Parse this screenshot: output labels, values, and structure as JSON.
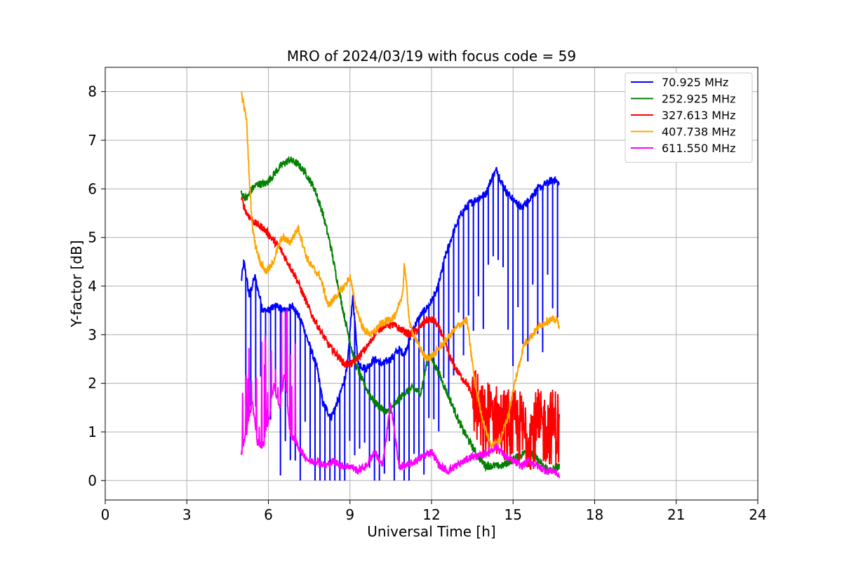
{
  "chart_data": {
    "type": "line",
    "title": "MRO of 2024/03/19 with focus code = 59",
    "xlabel": "Universal Time [h]",
    "ylabel": "Y-factor [dB]",
    "xlim": [
      0,
      24
    ],
    "ylim": [
      -0.4,
      8.5
    ],
    "x_ticks": [
      0,
      3,
      6,
      9,
      12,
      15,
      18,
      21,
      24
    ],
    "y_ticks": [
      0,
      1,
      2,
      3,
      4,
      5,
      6,
      7,
      8
    ],
    "x_tick_labels": [
      "0",
      "3",
      "6",
      "9",
      "12",
      "15",
      "18",
      "21",
      "24"
    ],
    "y_tick_labels": [
      "0",
      "1",
      "2",
      "3",
      "4",
      "5",
      "6",
      "7",
      "8"
    ],
    "grid": true,
    "legend_position": "top-right",
    "series": [
      {
        "name": " 70.925 MHz",
        "color": "#0000ff",
        "spikes": true,
        "x": [
          5.0,
          5.1,
          5.3,
          5.5,
          5.8,
          6.0,
          6.3,
          6.6,
          6.9,
          7.2,
          7.5,
          7.8,
          8.0,
          8.3,
          8.6,
          8.9,
          9.1,
          9.3,
          9.6,
          9.9,
          10.2,
          10.5,
          10.8,
          11.0,
          11.3,
          11.6,
          11.9,
          12.2,
          12.5,
          12.8,
          13.1,
          13.4,
          13.7,
          14.0,
          14.2,
          14.4,
          14.6,
          14.8,
          15.0,
          15.3,
          15.6,
          15.9,
          16.2,
          16.5,
          16.7
        ],
        "y": [
          4.1,
          4.5,
          3.8,
          4.2,
          3.5,
          3.5,
          3.6,
          3.5,
          3.6,
          3.3,
          2.8,
          2.3,
          1.6,
          1.3,
          1.7,
          2.3,
          3.8,
          2.4,
          2.3,
          2.5,
          2.4,
          2.5,
          2.7,
          2.6,
          3.1,
          3.4,
          3.6,
          3.9,
          4.6,
          5.1,
          5.5,
          5.7,
          5.8,
          5.9,
          6.2,
          6.4,
          6.1,
          5.9,
          5.8,
          5.6,
          5.8,
          6.0,
          6.1,
          6.2,
          6.1
        ]
      },
      {
        "name": " 252.925 MHz",
        "color": "#008000",
        "x": [
          5.0,
          5.2,
          5.4,
          5.6,
          5.9,
          6.2,
          6.5,
          6.8,
          7.1,
          7.4,
          7.7,
          8.0,
          8.3,
          8.6,
          8.9,
          9.2,
          9.5,
          9.8,
          10.1,
          10.4,
          10.7,
          11.0,
          11.3,
          11.6,
          11.9,
          12.2,
          12.5,
          12.8,
          13.1,
          13.4,
          13.7,
          14.0,
          14.3,
          14.6,
          14.9,
          15.2,
          15.5,
          15.8,
          16.1,
          16.4,
          16.7
        ],
        "y": [
          5.9,
          5.8,
          6.0,
          6.1,
          6.1,
          6.3,
          6.5,
          6.6,
          6.5,
          6.3,
          6.0,
          5.5,
          4.8,
          3.9,
          3.1,
          2.4,
          2.0,
          1.7,
          1.5,
          1.4,
          1.6,
          1.8,
          1.9,
          1.8,
          2.6,
          2.3,
          1.9,
          1.5,
          1.1,
          0.8,
          0.5,
          0.3,
          0.3,
          0.3,
          0.4,
          0.5,
          0.6,
          0.5,
          0.3,
          0.2,
          0.3
        ]
      },
      {
        "name": " 327.613 MHz",
        "color": "#ff0000",
        "noisy_tail": true,
        "x": [
          5.0,
          5.2,
          5.5,
          5.8,
          6.1,
          6.4,
          6.7,
          7.0,
          7.3,
          7.6,
          7.9,
          8.2,
          8.5,
          8.8,
          9.1,
          9.4,
          9.7,
          10.0,
          10.3,
          10.6,
          10.9,
          11.2,
          11.5,
          11.8,
          12.1,
          12.4,
          12.7,
          13.0,
          13.3,
          13.6,
          13.9,
          14.2,
          14.5,
          14.8,
          15.1,
          15.4,
          15.7,
          16.0,
          16.3,
          16.6,
          16.7
        ],
        "y": [
          5.8,
          5.5,
          5.3,
          5.2,
          5.0,
          4.8,
          4.5,
          4.2,
          3.8,
          3.4,
          3.1,
          2.8,
          2.6,
          2.4,
          2.4,
          2.6,
          2.8,
          3.1,
          3.2,
          3.2,
          3.1,
          3.0,
          3.1,
          3.3,
          3.3,
          3.0,
          2.5,
          2.2,
          2.0,
          1.6,
          1.1,
          1.3,
          1.2,
          1.1,
          1.1,
          1.0,
          1.0,
          1.1,
          1.1,
          1.1,
          1.0
        ]
      },
      {
        "name": " 407.738 MHz",
        "color": "#ffa500",
        "x": [
          5.0,
          5.1,
          5.2,
          5.3,
          5.4,
          5.5,
          5.7,
          5.9,
          6.1,
          6.3,
          6.5,
          6.8,
          7.1,
          7.4,
          7.6,
          7.9,
          8.2,
          8.5,
          8.8,
          9.0,
          9.2,
          9.5,
          9.8,
          10.1,
          10.4,
          10.7,
          10.95,
          11.0,
          11.2,
          11.5,
          11.8,
          12.1,
          12.4,
          12.7,
          13.0,
          13.3,
          13.6,
          13.9,
          14.2,
          14.5,
          14.8,
          15.1,
          15.4,
          15.7,
          16.0,
          16.3,
          16.6,
          16.7
        ],
        "y": [
          8.0,
          7.7,
          7.4,
          6.2,
          5.3,
          4.9,
          4.5,
          4.3,
          4.4,
          4.7,
          5.0,
          4.9,
          5.2,
          4.6,
          4.4,
          4.2,
          3.6,
          3.8,
          4.0,
          4.2,
          3.6,
          3.1,
          3.0,
          3.2,
          3.3,
          3.4,
          3.9,
          4.5,
          3.2,
          2.8,
          2.5,
          2.6,
          2.8,
          3.0,
          3.2,
          3.3,
          2.0,
          1.2,
          0.7,
          0.8,
          1.3,
          2.1,
          2.8,
          3.0,
          3.2,
          3.3,
          3.3,
          3.2
        ]
      },
      {
        "name": " 611.550 MHz",
        "color": "#ff00ff",
        "spiky": true,
        "x": [
          5.0,
          5.2,
          5.4,
          5.6,
          5.8,
          6.0,
          6.2,
          6.4,
          6.6,
          6.8,
          7.0,
          7.2,
          7.5,
          7.8,
          8.1,
          8.4,
          8.7,
          9.0,
          9.3,
          9.6,
          9.9,
          10.2,
          10.5,
          10.8,
          11.1,
          11.4,
          11.7,
          12.0,
          12.3,
          12.6,
          12.9,
          13.2,
          13.5,
          13.8,
          14.1,
          14.4,
          14.7,
          15.0,
          15.3,
          15.6,
          15.9,
          16.2,
          16.5,
          16.7
        ],
        "y": [
          0.6,
          1.0,
          1.6,
          0.8,
          0.7,
          1.2,
          2.0,
          1.5,
          2.2,
          1.0,
          0.8,
          0.6,
          0.4,
          0.4,
          0.3,
          0.4,
          0.3,
          0.3,
          0.2,
          0.3,
          0.6,
          0.3,
          1.6,
          0.3,
          0.3,
          0.4,
          0.5,
          0.6,
          0.3,
          0.2,
          0.3,
          0.4,
          0.5,
          0.5,
          0.6,
          0.7,
          0.5,
          0.4,
          0.3,
          0.4,
          0.3,
          0.2,
          0.2,
          0.1
        ]
      }
    ]
  }
}
